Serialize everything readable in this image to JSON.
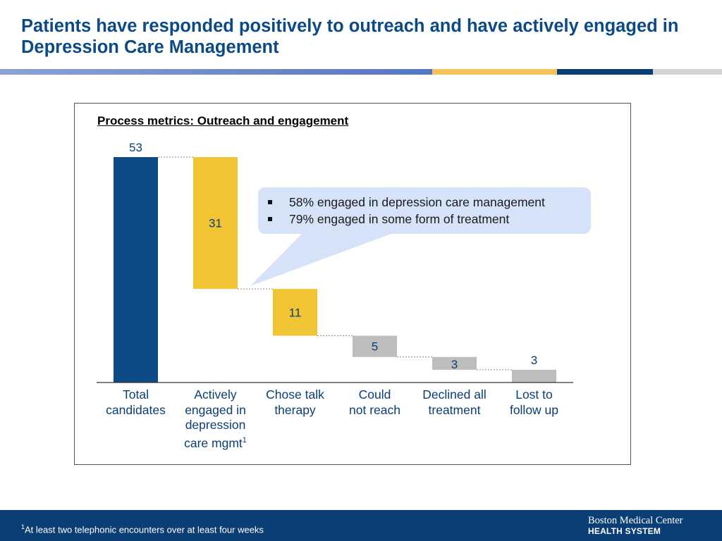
{
  "header": {
    "title": "Patients have responded positively to outreach and have actively engaged in Depression Care Management"
  },
  "colors": {
    "navy": "#0b4a85",
    "gold": "#f0c433",
    "gray": "#bdbdbd",
    "label": "#0b3e74",
    "callout": "#d6e2f7"
  },
  "chart_data": {
    "type": "bar",
    "subtype": "waterfall",
    "title": "Process metrics:  Outreach and engagement",
    "ylim": [
      0,
      53
    ],
    "categories": [
      [
        "Total",
        "candidates"
      ],
      [
        "Actively",
        "engaged in",
        "depression",
        "care mgmt"
      ],
      [
        "Chose talk",
        "therapy"
      ],
      [
        "Could",
        "not reach"
      ],
      [
        "Declined all",
        "treatment"
      ],
      [
        "Lost to",
        "follow up"
      ]
    ],
    "footnote_mark": [
      "",
      "1",
      "",
      "",
      "",
      ""
    ],
    "values": [
      53,
      31,
      11,
      5,
      3,
      3
    ],
    "base": [
      0,
      22,
      11,
      6,
      3,
      0
    ],
    "value_labels": [
      "53",
      "31",
      "11",
      "5",
      "3",
      "3"
    ],
    "bar_colors": [
      "navy",
      "gold",
      "gold",
      "gray",
      "gray",
      "gray"
    ]
  },
  "callout": {
    "items": [
      "58% engaged in depression care management",
      "79% engaged in some form of treatment"
    ]
  },
  "footer": {
    "footnote_mark": "1",
    "footnote_text": "At least two telephonic encounters over at least four weeks",
    "logo_line1": "Boston Medical Center",
    "logo_line2": "HEALTH SYSTEM"
  }
}
